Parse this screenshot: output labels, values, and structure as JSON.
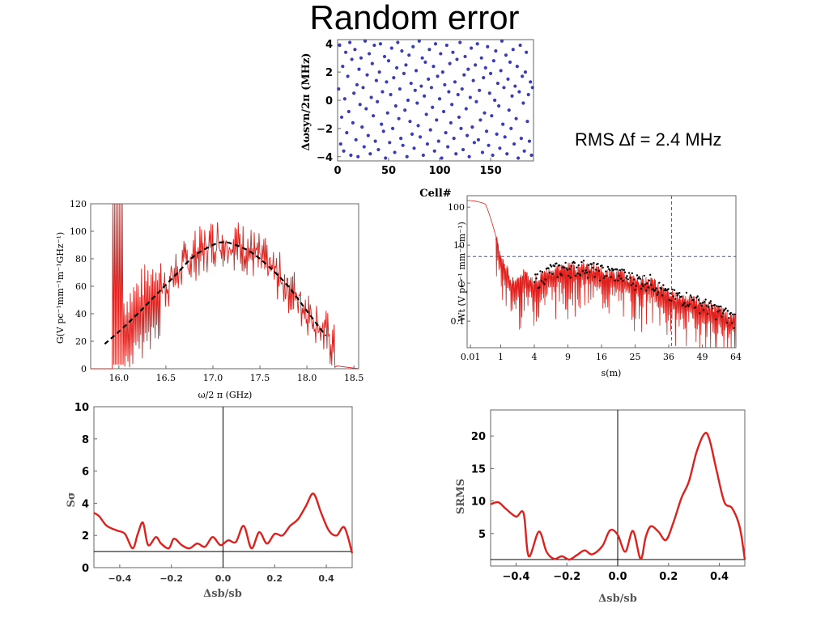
{
  "title": "Random error",
  "note": "RMS ∆f = 2.4 MHz",
  "chart_data": [
    {
      "id": "cell-scatter",
      "type": "scatter",
      "xlabel": "Cell#",
      "ylabel": "Δωsyn/2π (MHz)",
      "xlim": [
        0,
        192
      ],
      "ylim": [
        -4.3,
        4.3
      ],
      "xticks": [
        "0",
        "50",
        "100",
        "150"
      ],
      "yticks": [
        "4",
        "2",
        "0",
        "−2",
        "−4"
      ],
      "color": "#3c3cb4",
      "points": [
        [
          1,
          0.8
        ],
        [
          2,
          3.9
        ],
        [
          3,
          -3.1
        ],
        [
          4,
          -1.2
        ],
        [
          5,
          2.4
        ],
        [
          6,
          -3.6
        ],
        [
          7,
          0.1
        ],
        [
          8,
          3.4
        ],
        [
          9,
          -2.3
        ],
        [
          10,
          1.7
        ],
        [
          11,
          -0.8
        ],
        [
          12,
          4.1
        ],
        [
          13,
          -3.9
        ],
        [
          14,
          2.9
        ],
        [
          15,
          -1.6
        ],
        [
          16,
          0.5
        ],
        [
          17,
          3.6
        ],
        [
          18,
          -2.8
        ],
        [
          19,
          1.1
        ],
        [
          20,
          -4.0
        ],
        [
          21,
          2.2
        ],
        [
          22,
          -0.3
        ],
        [
          23,
          3.0
        ],
        [
          24,
          -1.9
        ],
        [
          25,
          0.9
        ],
        [
          26,
          -3.3
        ],
        [
          27,
          4.2
        ],
        [
          28,
          -0.6
        ],
        [
          29,
          1.8
        ],
        [
          30,
          -2.5
        ],
        [
          31,
          3.3
        ],
        [
          32,
          -3.8
        ],
        [
          33,
          0.2
        ],
        [
          34,
          2.6
        ],
        [
          35,
          -1.1
        ],
        [
          36,
          3.9
        ],
        [
          37,
          -2.9
        ],
        [
          38,
          1.4
        ],
        [
          39,
          -0.1
        ],
        [
          40,
          -3.5
        ],
        [
          41,
          2.0
        ],
        [
          42,
          4.0
        ],
        [
          43,
          -1.7
        ],
        [
          44,
          0.6
        ],
        [
          45,
          -2.2
        ],
        [
          46,
          3.1
        ],
        [
          47,
          -4.1
        ],
        [
          48,
          1.3
        ],
        [
          49,
          -0.9
        ],
        [
          50,
          2.8
        ],
        [
          51,
          -3.0
        ],
        [
          52,
          0.4
        ],
        [
          53,
          3.7
        ],
        [
          54,
          -2.0
        ],
        [
          55,
          1.6
        ],
        [
          56,
          -3.7
        ],
        [
          57,
          -0.4
        ],
        [
          58,
          2.3
        ],
        [
          59,
          4.1
        ],
        [
          60,
          -1.3
        ],
        [
          61,
          0.8
        ],
        [
          62,
          -2.7
        ],
        [
          63,
          3.5
        ],
        [
          64,
          -3.2
        ],
        [
          65,
          1.9
        ],
        [
          66,
          -0.7
        ],
        [
          67,
          2.5
        ],
        [
          68,
          -4.0
        ],
        [
          69,
          0.0
        ],
        [
          70,
          3.2
        ],
        [
          71,
          -1.5
        ],
        [
          72,
          1.2
        ],
        [
          73,
          -2.4
        ],
        [
          74,
          3.8
        ],
        [
          75,
          -3.4
        ],
        [
          76,
          0.7
        ],
        [
          77,
          2.1
        ],
        [
          78,
          -0.2
        ],
        [
          79,
          -1.8
        ],
        [
          80,
          4.2
        ],
        [
          81,
          -2.6
        ],
        [
          82,
          1.0
        ],
        [
          83,
          3.0
        ],
        [
          84,
          -3.9
        ],
        [
          85,
          0.3
        ],
        [
          86,
          2.7
        ],
        [
          87,
          -1.0
        ],
        [
          88,
          -3.1
        ],
        [
          89,
          1.5
        ],
        [
          90,
          3.6
        ],
        [
          91,
          -2.1
        ],
        [
          92,
          0.9
        ],
        [
          93,
          -0.5
        ],
        [
          94,
          2.4
        ],
        [
          95,
          -3.6
        ],
        [
          96,
          4.0
        ],
        [
          97,
          -1.4
        ],
        [
          98,
          1.7
        ],
        [
          99,
          -2.9
        ],
        [
          100,
          0.1
        ],
        [
          101,
          3.3
        ],
        [
          102,
          -4.1
        ],
        [
          103,
          2.0
        ],
        [
          104,
          -0.8
        ],
        [
          105,
          1.1
        ],
        [
          106,
          -2.3
        ],
        [
          107,
          3.9
        ],
        [
          108,
          -3.3
        ],
        [
          109,
          0.6
        ],
        [
          110,
          2.6
        ],
        [
          111,
          -1.6
        ],
        [
          112,
          -0.3
        ],
        [
          113,
          3.4
        ],
        [
          114,
          -2.7
        ],
        [
          115,
          1.3
        ],
        [
          116,
          -3.8
        ],
        [
          117,
          2.9
        ],
        [
          118,
          0.4
        ],
        [
          119,
          -1.2
        ],
        [
          120,
          4.1
        ],
        [
          121,
          -2.0
        ],
        [
          122,
          0.8
        ],
        [
          123,
          -3.5
        ],
        [
          124,
          1.8
        ],
        [
          125,
          3.1
        ],
        [
          126,
          -0.6
        ],
        [
          127,
          -2.5
        ],
        [
          128,
          2.2
        ],
        [
          129,
          -4.0
        ],
        [
          130,
          0.2
        ],
        [
          131,
          3.7
        ],
        [
          132,
          -1.9
        ],
        [
          133,
          1.4
        ],
        [
          134,
          -3.0
        ],
        [
          135,
          2.5
        ],
        [
          136,
          -0.1
        ],
        [
          137,
          4.0
        ],
        [
          138,
          -2.8
        ],
        [
          139,
          0.7
        ],
        [
          140,
          -1.4
        ],
        [
          141,
          3.0
        ],
        [
          142,
          -3.7
        ],
        [
          143,
          1.6
        ],
        [
          144,
          -0.9
        ],
        [
          145,
          2.3
        ],
        [
          146,
          -2.2
        ],
        [
          147,
          3.8
        ],
        [
          148,
          -3.2
        ],
        [
          149,
          0.5
        ],
        [
          150,
          1.9
        ],
        [
          151,
          -1.1
        ],
        [
          152,
          -3.9
        ],
        [
          153,
          2.8
        ],
        [
          154,
          0.0
        ],
        [
          155,
          3.5
        ],
        [
          156,
          -2.4
        ],
        [
          157,
          1.2
        ],
        [
          158,
          -0.4
        ],
        [
          159,
          -3.4
        ],
        [
          160,
          2.1
        ],
        [
          161,
          4.2
        ],
        [
          162,
          -1.7
        ],
        [
          163,
          0.9
        ],
        [
          164,
          -2.6
        ],
        [
          165,
          3.2
        ],
        [
          166,
          -3.8
        ],
        [
          167,
          1.5
        ],
        [
          168,
          -0.7
        ],
        [
          169,
          2.7
        ],
        [
          170,
          -2.0
        ],
        [
          171,
          0.3
        ],
        [
          172,
          3.6
        ],
        [
          173,
          -3.1
        ],
        [
          174,
          1.0
        ],
        [
          175,
          -1.3
        ],
        [
          176,
          2.4
        ],
        [
          177,
          -4.1
        ],
        [
          178,
          0.6
        ],
        [
          179,
          3.9
        ],
        [
          180,
          -2.7
        ],
        [
          181,
          1.7
        ],
        [
          182,
          -0.2
        ],
        [
          183,
          -3.6
        ],
        [
          184,
          2.0
        ],
        [
          185,
          3.4
        ],
        [
          186,
          -1.5
        ],
        [
          187,
          0.4
        ],
        [
          188,
          -2.9
        ],
        [
          189,
          1.3
        ],
        [
          190,
          -3.9
        ],
        [
          191,
          0.9
        ]
      ]
    },
    {
      "id": "impedance",
      "type": "line",
      "xlabel": "ω/2 π (GHz)",
      "ylabel": "G(V pc⁻¹mm⁻¹m⁻¹GHz⁻¹)",
      "xlim": [
        15.7,
        18.55
      ],
      "ylim": [
        0,
        120
      ],
      "xticks": [
        "16.0",
        "16.5",
        "17.0",
        "17.5",
        "18.0",
        "18.5"
      ],
      "yticks": [
        "0",
        "20",
        "40",
        "60",
        "80",
        "100",
        "120"
      ],
      "series": [
        {
          "role": "envelope",
          "color": "#e0201c",
          "style": "solid",
          "x": [
            15.95,
            16.05,
            16.2,
            16.35,
            16.5,
            16.65,
            16.8,
            16.95,
            17.05,
            17.2,
            17.35,
            17.5,
            17.65,
            17.8,
            17.95,
            18.05,
            18.15,
            18.25,
            18.35
          ],
          "y": [
            18,
            27,
            38,
            50,
            61,
            72,
            82,
            89,
            92,
            91,
            87,
            80,
            71,
            59,
            47,
            38,
            30,
            20,
            5
          ]
        },
        {
          "role": "fit",
          "color": "#000000",
          "style": "dashed",
          "x": [
            15.85,
            16.0,
            16.2,
            16.4,
            16.6,
            16.8,
            17.0,
            17.1,
            17.2,
            17.4,
            17.6,
            17.8,
            18.0,
            18.2
          ],
          "y": [
            18,
            27,
            40,
            54,
            68,
            82,
            90,
            92,
            91,
            85,
            74,
            60,
            42,
            24
          ]
        }
      ]
    },
    {
      "id": "wake",
      "type": "line",
      "xlabel": "s(m)",
      "ylabel": "Wt (V pC⁻¹ mm⁻¹ m⁻¹)",
      "scale": "sqrt-x, log-y",
      "xlim": [
        0,
        64
      ],
      "ylim": [
        0.02,
        200
      ],
      "xticks": [
        "0.01",
        "1",
        "4",
        "9",
        "16",
        "25",
        "36",
        "49",
        "64"
      ],
      "yticks": [
        "100",
        "10",
        "1",
        "0.1"
      ],
      "series": [
        {
          "role": "wake",
          "color": "#e0201c",
          "style": "solid",
          "x": [
            0.0,
            0.3,
            1.0,
            1.8,
            2.8,
            4.0,
            6.0,
            9.0,
            12.0,
            16.0,
            20.0,
            25.0,
            30.0,
            36.0,
            42.0,
            49.0,
            56.0,
            64.0
          ],
          "y": [
            150,
            120,
            5.0,
            1.1,
            1.8,
            1.2,
            2.3,
            2.7,
            2.9,
            2.2,
            1.9,
            1.3,
            1.2,
            0.5,
            0.45,
            0.3,
            0.2,
            0.12
          ]
        },
        {
          "role": "envelope",
          "color": "#000000",
          "style": "dotted",
          "x": [
            4,
            9,
            16,
            25,
            36,
            42,
            49,
            56,
            64
          ],
          "y": [
            2.4,
            2.7,
            2.2,
            1.3,
            0.55,
            0.45,
            0.35,
            0.2,
            0.1
          ]
        }
      ],
      "reference_lines": {
        "color": "#3355dd",
        "y": 5,
        "x": 37
      }
    },
    {
      "id": "s-sigma",
      "type": "line",
      "xlabel": "Δsb/sb",
      "ylabel": "Sσ",
      "xlim": [
        -0.5,
        0.5
      ],
      "ylim": [
        0,
        10
      ],
      "xticks": [
        "−0.4",
        "−0.2",
        "0.0",
        "0.2",
        "0.4"
      ],
      "yticks": [
        "0",
        "2",
        "4",
        "6",
        "8",
        "10"
      ],
      "hline": 1,
      "series": [
        {
          "color": "#e0201c",
          "x": [
            -0.5,
            -0.48,
            -0.45,
            -0.41,
            -0.38,
            -0.35,
            -0.33,
            -0.31,
            -0.29,
            -0.26,
            -0.24,
            -0.21,
            -0.19,
            -0.16,
            -0.13,
            -0.1,
            -0.07,
            -0.04,
            -0.01,
            0.02,
            0.05,
            0.08,
            0.11,
            0.14,
            0.17,
            0.2,
            0.23,
            0.26,
            0.29,
            0.32,
            0.35,
            0.38,
            0.41,
            0.44,
            0.47,
            0.5
          ],
          "y": [
            3.4,
            3.2,
            2.6,
            2.3,
            2.1,
            1.2,
            2.1,
            2.8,
            1.4,
            1.9,
            1.5,
            1.2,
            1.8,
            1.4,
            1.2,
            1.5,
            1.3,
            1.9,
            1.4,
            1.7,
            1.6,
            2.6,
            1.2,
            2.2,
            1.5,
            2.1,
            2.0,
            2.6,
            3.0,
            3.8,
            4.6,
            3.4,
            2.3,
            2.0,
            2.5,
            0.9
          ]
        }
      ]
    },
    {
      "id": "s-rms",
      "type": "line",
      "xlabel": "Δsb/sb",
      "ylabel": "SRMS",
      "xlim": [
        -0.5,
        0.5
      ],
      "ylim": [
        0,
        24
      ],
      "xticks": [
        "−0.4",
        "−0.2",
        "0.0",
        "0.2",
        "0.4"
      ],
      "yticks": [
        "5",
        "10",
        "15",
        "20"
      ],
      "hline": 1,
      "series": [
        {
          "color": "#e0201c",
          "x": [
            -0.5,
            -0.47,
            -0.44,
            -0.4,
            -0.37,
            -0.35,
            -0.31,
            -0.28,
            -0.25,
            -0.22,
            -0.19,
            -0.16,
            -0.13,
            -0.1,
            -0.06,
            -0.03,
            0.0,
            0.03,
            0.06,
            0.09,
            0.11,
            0.13,
            0.16,
            0.19,
            0.22,
            0.25,
            0.28,
            0.31,
            0.34,
            0.36,
            0.39,
            0.42,
            0.45,
            0.48,
            0.5
          ],
          "y": [
            9.5,
            9.8,
            8.8,
            7.6,
            8.1,
            1.5,
            5.3,
            2.2,
            1.1,
            1.5,
            1.0,
            1.7,
            2.4,
            1.8,
            3.1,
            5.5,
            4.8,
            2.2,
            5.4,
            1.1,
            4.4,
            6.1,
            5.3,
            4.0,
            6.8,
            10.4,
            13.0,
            17.5,
            20.3,
            19.6,
            14.5,
            9.8,
            8.9,
            6.0,
            1.0
          ]
        }
      ]
    }
  ]
}
